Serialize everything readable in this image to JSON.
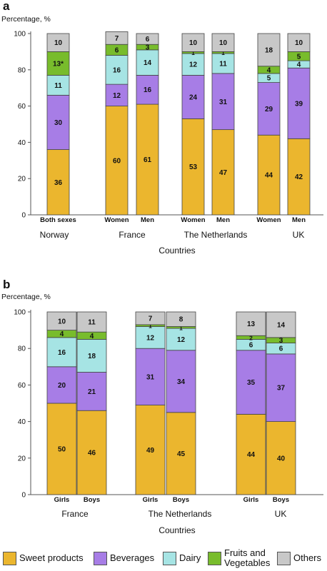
{
  "chart_data": [
    {
      "type": "bar",
      "panel_label": "a",
      "ylabel": "Percentage, %",
      "xlabel": "Countries",
      "ylim": [
        0,
        100
      ],
      "yticks": [
        0,
        20,
        40,
        60,
        80,
        100
      ],
      "groups": [
        {
          "name": "Norway",
          "bars": [
            {
              "label": "Both sexes",
              "values": [
                36,
                30,
                11,
                13,
                10
              ],
              "labels": [
                "36",
                "30",
                "11",
                "13*",
                "10"
              ]
            }
          ]
        },
        {
          "name": "France",
          "bars": [
            {
              "label": "Women",
              "values": [
                60,
                12,
                16,
                6,
                7
              ],
              "labels": [
                "60",
                "12",
                "16",
                "6",
                "7"
              ]
            },
            {
              "label": "Men",
              "values": [
                61,
                16,
                14,
                3,
                6
              ],
              "labels": [
                "61",
                "16",
                "14",
                "3",
                "6"
              ]
            }
          ]
        },
        {
          "name": "The Netherlands",
          "bars": [
            {
              "label": "Women",
              "values": [
                53,
                24,
                12,
                1,
                10
              ],
              "labels": [
                "53",
                "24",
                "12",
                "1",
                "10"
              ]
            },
            {
              "label": "Men",
              "values": [
                47,
                31,
                11,
                1,
                10
              ],
              "labels": [
                "47",
                "31",
                "11",
                "1",
                "10"
              ]
            }
          ]
        },
        {
          "name": "UK",
          "bars": [
            {
              "label": "Women",
              "values": [
                44,
                29,
                5,
                4,
                18
              ],
              "labels": [
                "44",
                "29",
                "5",
                "4",
                "18"
              ]
            },
            {
              "label": "Men",
              "values": [
                42,
                39,
                4,
                5,
                10
              ],
              "labels": [
                "42",
                "39",
                "4",
                "5",
                "10"
              ]
            }
          ]
        }
      ]
    },
    {
      "type": "bar",
      "panel_label": "b",
      "ylabel": "Percentage, %",
      "xlabel": "Countries",
      "ylim": [
        0,
        100
      ],
      "yticks": [
        0,
        20,
        40,
        60,
        80,
        100
      ],
      "groups": [
        {
          "name": "France",
          "bars": [
            {
              "label": "Girls",
              "values": [
                50,
                20,
                16,
                4,
                10
              ],
              "labels": [
                "50",
                "20",
                "16",
                "4",
                "10"
              ]
            },
            {
              "label": "Boys",
              "values": [
                46,
                21,
                18,
                4,
                11
              ],
              "labels": [
                "46",
                "21",
                "18",
                "4",
                "11"
              ]
            }
          ]
        },
        {
          "name": "The Netherlands",
          "bars": [
            {
              "label": "Girls",
              "values": [
                49,
                31,
                12,
                1,
                7
              ],
              "labels": [
                "49",
                "31",
                "12",
                "1",
                "7"
              ]
            },
            {
              "label": "Boys",
              "values": [
                45,
                34,
                12,
                1,
                8
              ],
              "labels": [
                "45",
                "34",
                "12",
                "1",
                "8"
              ]
            }
          ]
        },
        {
          "name": "UK",
          "bars": [
            {
              "label": "Girls",
              "values": [
                44,
                35,
                6,
                2,
                13
              ],
              "labels": [
                "44",
                "35",
                "6",
                "2",
                "13"
              ]
            },
            {
              "label": "Boys",
              "values": [
                40,
                37,
                6,
                3,
                14
              ],
              "labels": [
                "40",
                "37",
                "6",
                "3",
                "14"
              ]
            }
          ]
        }
      ]
    }
  ],
  "series": [
    {
      "name": "Sweet products",
      "color": "#ebb62e"
    },
    {
      "name": "Beverages",
      "color": "#a77de6"
    },
    {
      "name": "Dairy",
      "color": "#a6e4e4"
    },
    {
      "name": "Fruits and Vegetables",
      "color": "#78bc2c"
    },
    {
      "name": "Others",
      "color": "#c8c8c8"
    }
  ],
  "legend": {
    "placement": "bottom",
    "items": [
      {
        "name": "Sweet products",
        "color": "#ebb62e"
      },
      {
        "name": "Beverages",
        "color": "#a77de6"
      },
      {
        "name": "Dairy",
        "color": "#a6e4e4"
      },
      {
        "name": "Fruits and Vegetables",
        "color": "#78bc2c"
      },
      {
        "name": "Others",
        "color": "#c8c8c8"
      }
    ]
  }
}
